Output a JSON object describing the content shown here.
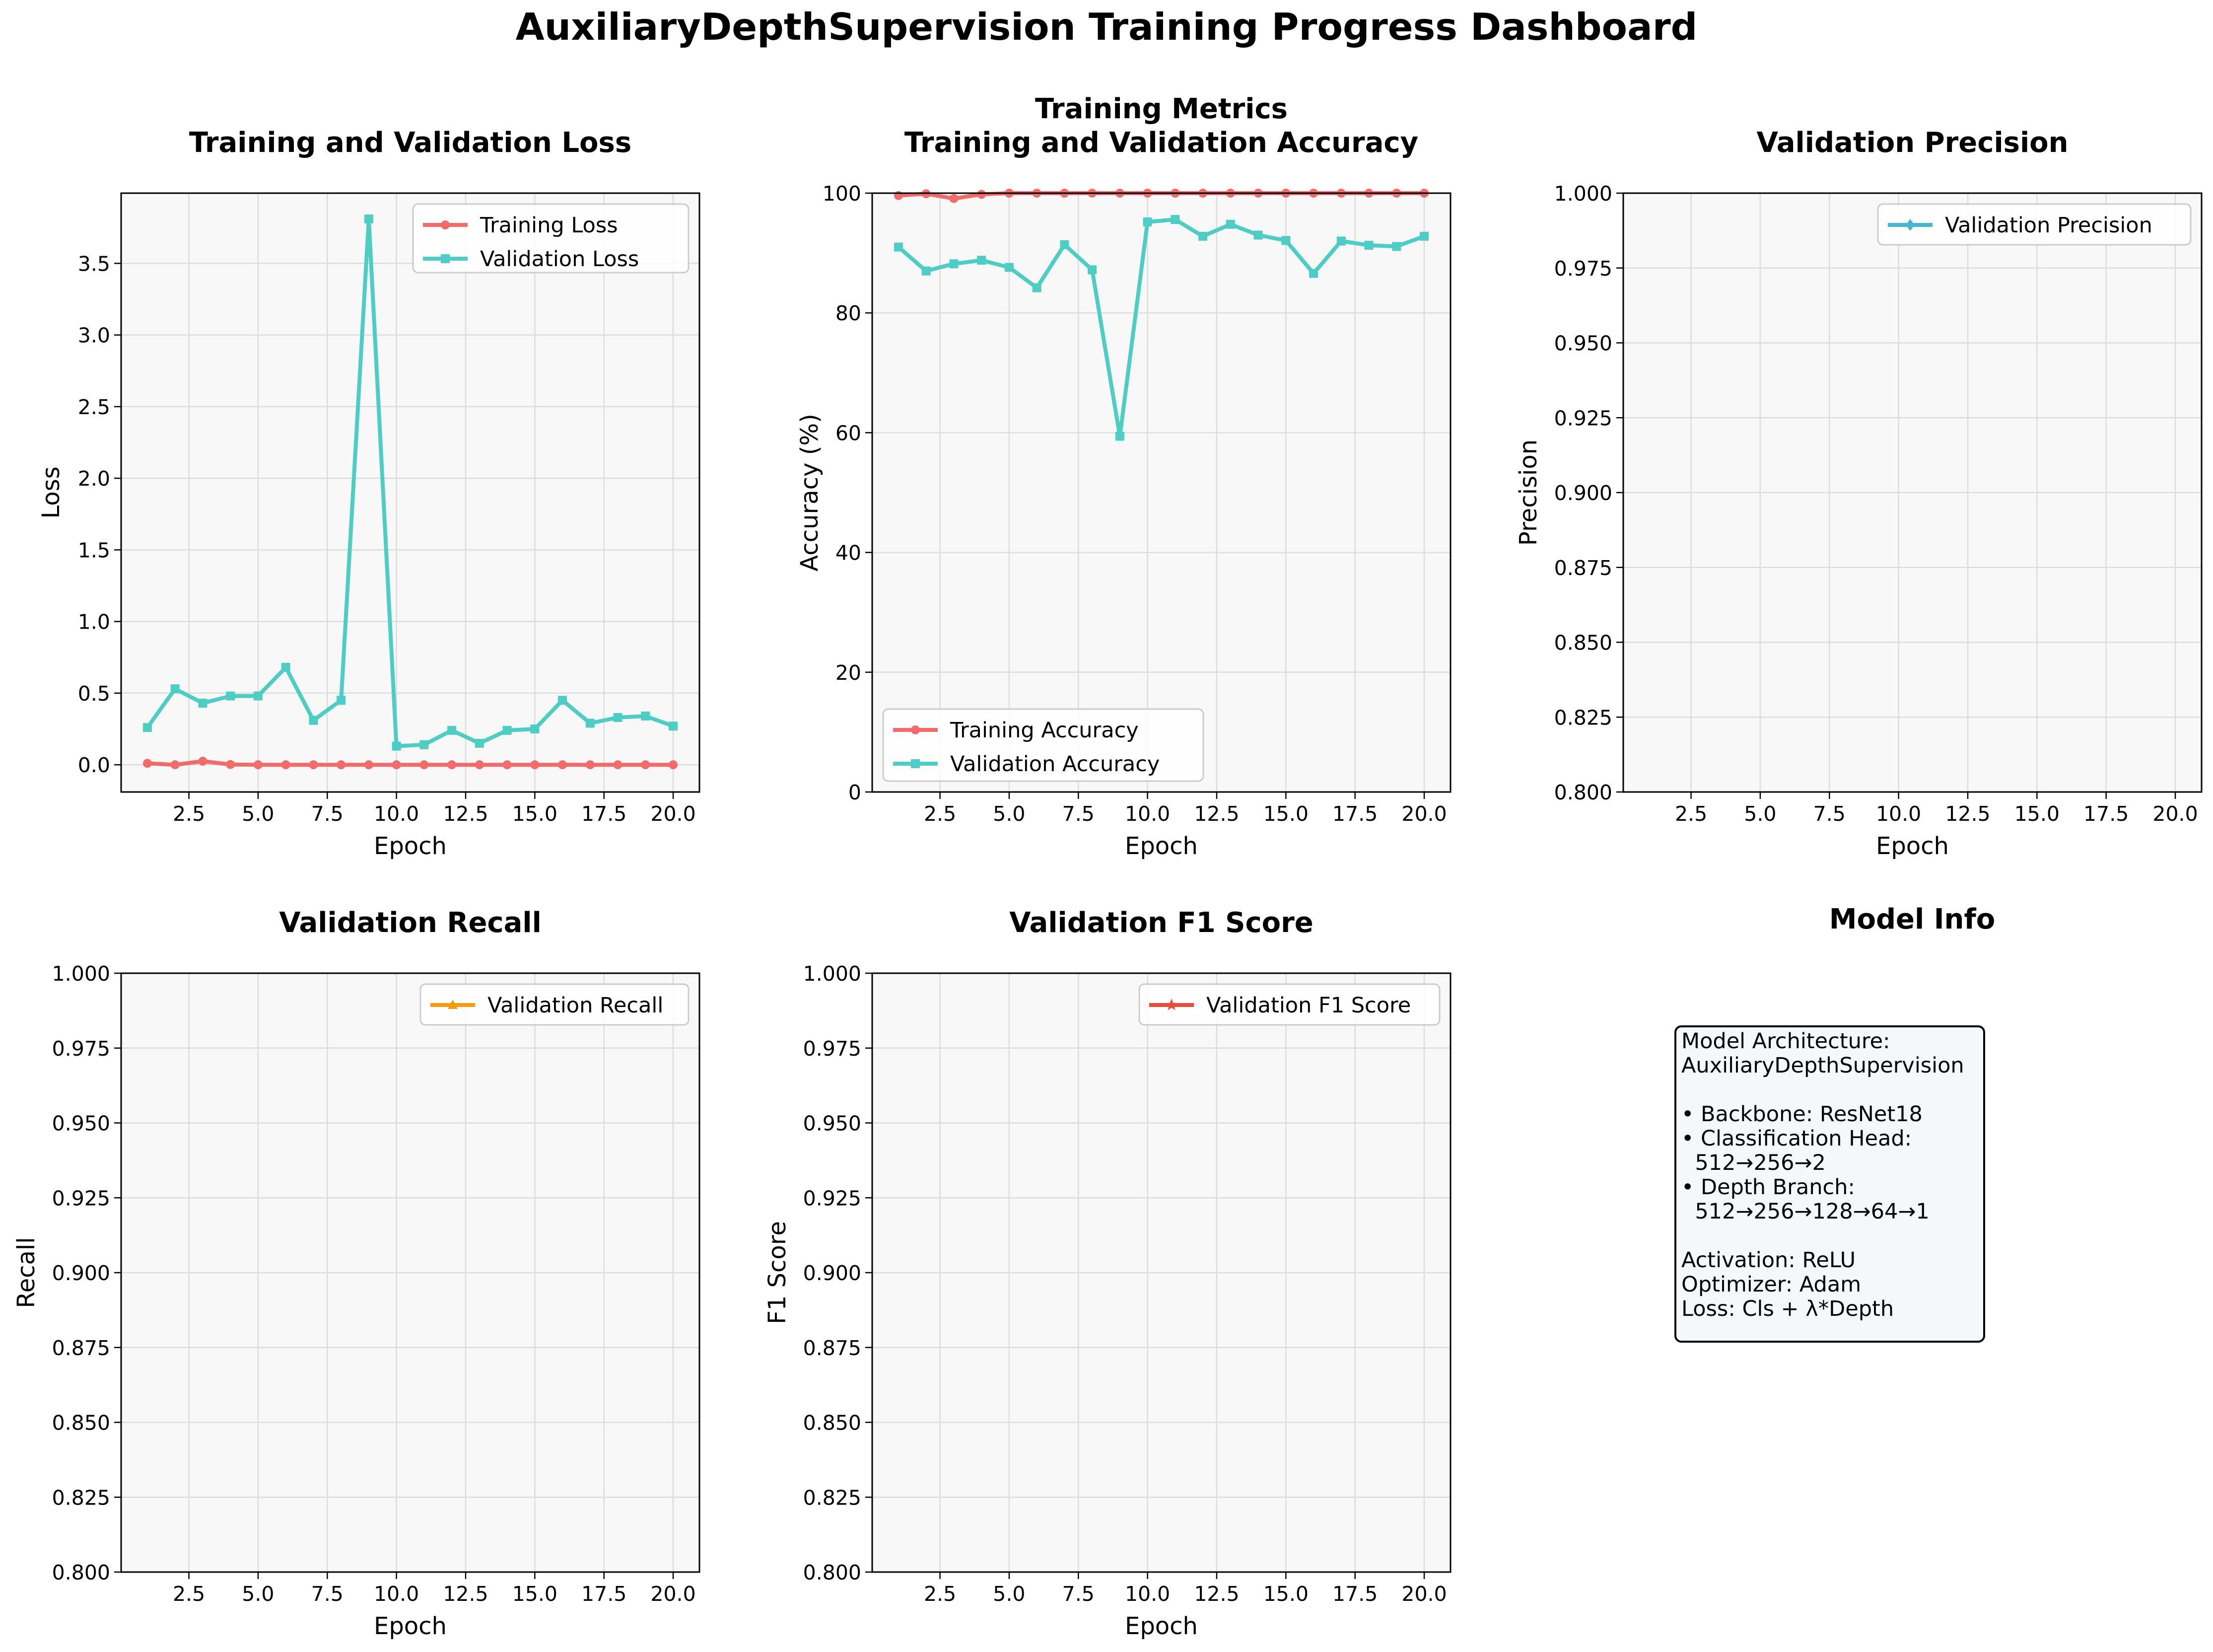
{
  "title": "AuxiliaryDepthSupervision Training Progress Dashboard",
  "colors": {
    "training": "#f26b6b",
    "validation": "#4ecdc4",
    "precision": "#45b7d1",
    "recall": "#f39c12",
    "f1": "#e74c3c",
    "panel_bg": "#f8f8f8",
    "grid": "#dddddd"
  },
  "chart_data": [
    {
      "type": "line",
      "title": "Training and Validation Loss",
      "xlabel": "Epoch",
      "ylabel": "Loss",
      "xlim": [
        0.05,
        20.95
      ],
      "ylim": [
        -0.19,
        3.99
      ],
      "xticks": [
        2.5,
        5.0,
        7.5,
        10.0,
        12.5,
        15.0,
        17.5,
        20.0
      ],
      "xtick_labels": [
        "2.5",
        "5.0",
        "7.5",
        "10.0",
        "12.5",
        "15.0",
        "17.5",
        "20.0"
      ],
      "yticks": [
        0.0,
        0.5,
        1.0,
        1.5,
        2.0,
        2.5,
        3.0,
        3.5
      ],
      "ytick_labels": [
        "0.0",
        "0.5",
        "1.0",
        "1.5",
        "2.0",
        "2.5",
        "3.0",
        "3.5"
      ],
      "grid": true,
      "legend": "upper right",
      "x": [
        1,
        2,
        3,
        4,
        5,
        6,
        7,
        8,
        9,
        10,
        11,
        12,
        13,
        14,
        15,
        16,
        17,
        18,
        19,
        20
      ],
      "series": [
        {
          "name": "Training Loss",
          "color_key": "training",
          "marker": "circle",
          "values": [
            0.01,
            0.0,
            0.025,
            0.002,
            0.0,
            0.0,
            0.0,
            0.0,
            0.0,
            0.0,
            0.0,
            0.0,
            0.0,
            0.0,
            0.0,
            0.0,
            0.0,
            0.0,
            0.0,
            0.0
          ]
        },
        {
          "name": "Validation Loss",
          "color_key": "validation",
          "marker": "square",
          "values": [
            0.26,
            0.53,
            0.43,
            0.48,
            0.48,
            0.68,
            0.31,
            0.45,
            3.81,
            0.13,
            0.14,
            0.24,
            0.15,
            0.24,
            0.25,
            0.45,
            0.29,
            0.33,
            0.34,
            0.27
          ]
        }
      ]
    },
    {
      "type": "line",
      "title": "Training Metrics\nTraining and Validation Accuracy",
      "xlabel": "Epoch",
      "ylabel": "Accuracy (%)",
      "xlim": [
        0.05,
        20.95
      ],
      "ylim": [
        0,
        100
      ],
      "xticks": [
        2.5,
        5.0,
        7.5,
        10.0,
        12.5,
        15.0,
        17.5,
        20.0
      ],
      "xtick_labels": [
        "2.5",
        "5.0",
        "7.5",
        "10.0",
        "12.5",
        "15.0",
        "17.5",
        "20.0"
      ],
      "yticks": [
        0,
        20,
        40,
        60,
        80,
        100
      ],
      "ytick_labels": [
        "0",
        "20",
        "40",
        "60",
        "80",
        "100"
      ],
      "grid": true,
      "legend": "lower left",
      "x": [
        1,
        2,
        3,
        4,
        5,
        6,
        7,
        8,
        9,
        10,
        11,
        12,
        13,
        14,
        15,
        16,
        17,
        18,
        19,
        20
      ],
      "series": [
        {
          "name": "Training Accuracy",
          "color_key": "training",
          "marker": "circle",
          "values": [
            99.6,
            99.9,
            99.1,
            99.8,
            100,
            100,
            100,
            100,
            100,
            100,
            100,
            100,
            100,
            100,
            100,
            100,
            100,
            100,
            100,
            100
          ]
        },
        {
          "name": "Validation Accuracy",
          "color_key": "validation",
          "marker": "square",
          "values": [
            91.0,
            87.0,
            88.2,
            88.8,
            87.6,
            84.2,
            91.4,
            87.2,
            59.4,
            95.2,
            95.6,
            92.8,
            94.8,
            93.0,
            92.1,
            86.6,
            92.0,
            91.3,
            91.1,
            92.8
          ]
        }
      ]
    },
    {
      "type": "line",
      "title": "Validation Precision",
      "xlabel": "Epoch",
      "ylabel": "Precision",
      "xlim": [
        0.05,
        20.95
      ],
      "ylim": [
        0.8,
        1.0
      ],
      "xticks": [
        2.5,
        5.0,
        7.5,
        10.0,
        12.5,
        15.0,
        17.5,
        20.0
      ],
      "xtick_labels": [
        "2.5",
        "5.0",
        "7.5",
        "10.0",
        "12.5",
        "15.0",
        "17.5",
        "20.0"
      ],
      "yticks": [
        0.8,
        0.825,
        0.85,
        0.875,
        0.9,
        0.925,
        0.95,
        0.975,
        1.0
      ],
      "ytick_labels": [
        "0.800",
        "0.825",
        "0.850",
        "0.875",
        "0.900",
        "0.925",
        "0.950",
        "0.975",
        "1.000"
      ],
      "grid": true,
      "legend": "upper right",
      "series": [
        {
          "name": "Validation Precision",
          "color_key": "precision",
          "marker": "diamond",
          "values": []
        }
      ]
    },
    {
      "type": "line",
      "title": "Validation Recall",
      "xlabel": "Epoch",
      "ylabel": "Recall",
      "xlim": [
        0.05,
        20.95
      ],
      "ylim": [
        0.8,
        1.0
      ],
      "xticks": [
        2.5,
        5.0,
        7.5,
        10.0,
        12.5,
        15.0,
        17.5,
        20.0
      ],
      "xtick_labels": [
        "2.5",
        "5.0",
        "7.5",
        "10.0",
        "12.5",
        "15.0",
        "17.5",
        "20.0"
      ],
      "yticks": [
        0.8,
        0.825,
        0.85,
        0.875,
        0.9,
        0.925,
        0.95,
        0.975,
        1.0
      ],
      "ytick_labels": [
        "0.800",
        "0.825",
        "0.850",
        "0.875",
        "0.900",
        "0.925",
        "0.950",
        "0.975",
        "1.000"
      ],
      "grid": true,
      "legend": "upper right",
      "series": [
        {
          "name": "Validation Recall",
          "color_key": "recall",
          "marker": "triangle",
          "values": []
        }
      ]
    },
    {
      "type": "line",
      "title": "Validation F1 Score",
      "xlabel": "Epoch",
      "ylabel": "F1 Score",
      "xlim": [
        0.05,
        20.95
      ],
      "ylim": [
        0.8,
        1.0
      ],
      "xticks": [
        2.5,
        5.0,
        7.5,
        10.0,
        12.5,
        15.0,
        17.5,
        20.0
      ],
      "xtick_labels": [
        "2.5",
        "5.0",
        "7.5",
        "10.0",
        "12.5",
        "15.0",
        "17.5",
        "20.0"
      ],
      "yticks": [
        0.8,
        0.825,
        0.85,
        0.875,
        0.9,
        0.925,
        0.95,
        0.975,
        1.0
      ],
      "ytick_labels": [
        "0.800",
        "0.825",
        "0.850",
        "0.875",
        "0.900",
        "0.925",
        "0.950",
        "0.975",
        "1.000"
      ],
      "grid": true,
      "legend": "upper right",
      "series": [
        {
          "name": "Validation F1 Score",
          "color_key": "f1",
          "marker": "star",
          "values": []
        }
      ]
    }
  ],
  "model_info": {
    "title": "Model Info",
    "lines": [
      "Model Architecture:",
      "AuxiliaryDepthSupervision",
      "",
      "• Backbone: ResNet18",
      "• Classification Head:",
      "  512→256→2",
      "• Depth Branch:",
      "  512→256→128→64→1",
      "",
      "Activation: ReLU",
      "Optimizer: Adam",
      "Loss: Cls + λ*Depth"
    ]
  }
}
